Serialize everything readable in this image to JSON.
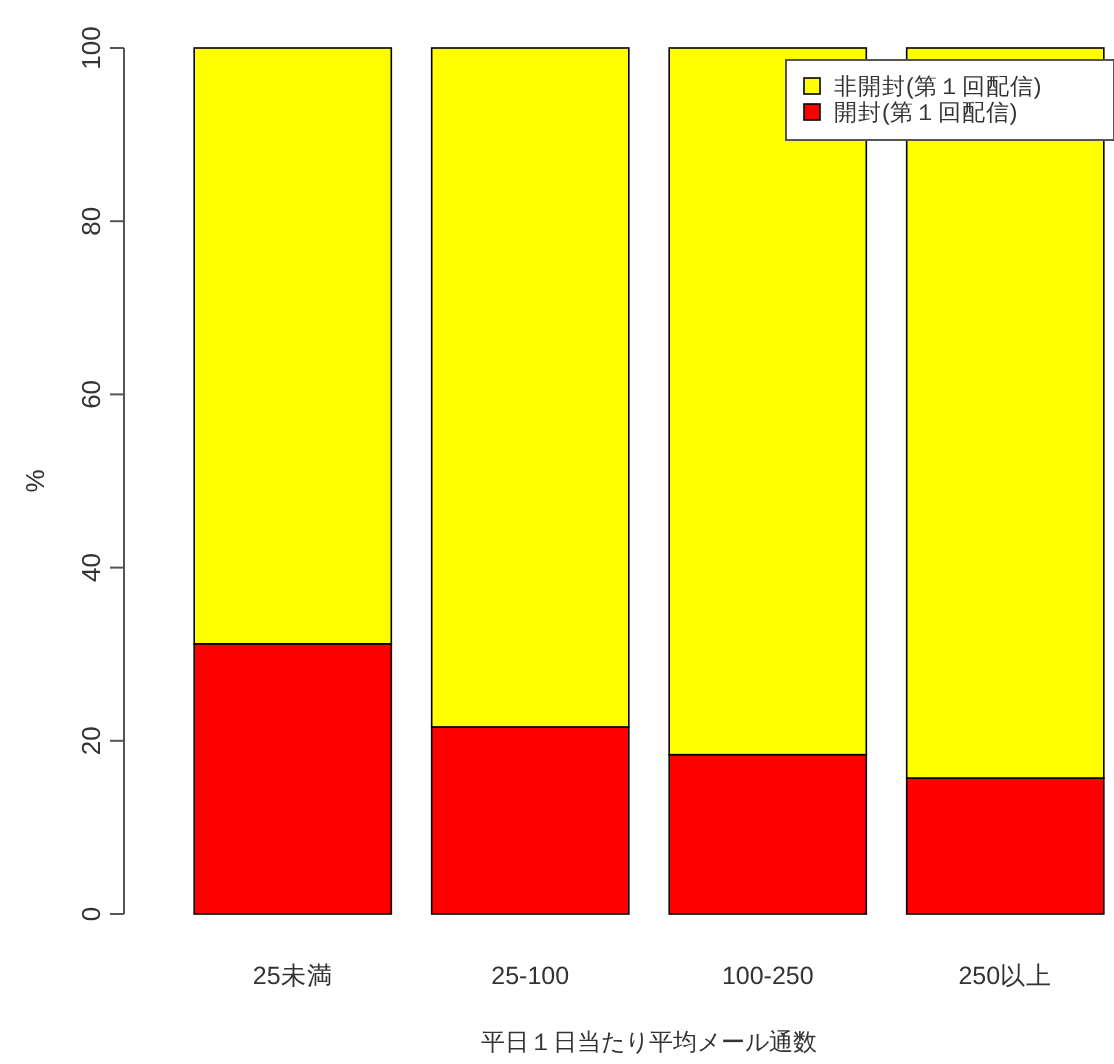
{
  "chart_data": {
    "type": "bar",
    "stacked": true,
    "xlabel": "平日１日当たり平均メール通数",
    "ylabel": "%",
    "categories": [
      "25未満",
      "25-100",
      "100-250",
      "250以上"
    ],
    "series": [
      {
        "name": "開封(第１回配信)",
        "color": "#ff0000",
        "values": [
          31.2,
          21.6,
          18.4,
          15.7
        ]
      },
      {
        "name": "非開封(第１回配信)",
        "color": "#ffff00",
        "values": [
          68.8,
          78.4,
          81.6,
          84.3
        ]
      }
    ],
    "ylim": [
      0,
      100
    ],
    "yticks": [
      0,
      20,
      40,
      60,
      80,
      100
    ],
    "grid": false,
    "legend": "top right"
  }
}
